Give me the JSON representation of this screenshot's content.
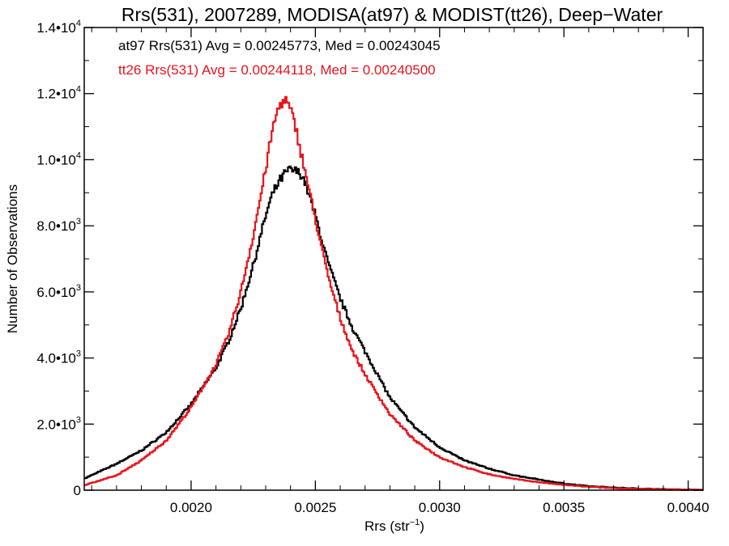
{
  "chart_data": {
    "type": "line",
    "title": "Rrs(531), 2007289, MODISA(at97) & MODIST(tt26), Deep−Water",
    "xlabel_main": "Rrs (str",
    "xlabel_sup": "−1",
    "xlabel_tail": ")",
    "ylabel": "Number of Observations",
    "xlim": [
      0.00157,
      0.00406
    ],
    "ylim": [
      0,
      14000
    ],
    "x_ticks": [
      {
        "value": 0.002,
        "label": "0.0020"
      },
      {
        "value": 0.0025,
        "label": "0.0025"
      },
      {
        "value": 0.003,
        "label": "0.0030"
      },
      {
        "value": 0.0035,
        "label": "0.0035"
      },
      {
        "value": 0.004,
        "label": "0.0040"
      }
    ],
    "y_ticks": [
      {
        "value": 0,
        "label": "0",
        "sup": ""
      },
      {
        "value": 2000,
        "label": "2.0•10",
        "sup": "3"
      },
      {
        "value": 4000,
        "label": "4.0•10",
        "sup": "3"
      },
      {
        "value": 6000,
        "label": "6.0•10",
        "sup": "3"
      },
      {
        "value": 8000,
        "label": "8.0•10",
        "sup": "3"
      },
      {
        "value": 10000,
        "label": "1.0•10",
        "sup": "4"
      },
      {
        "value": 12000,
        "label": "1.2•10",
        "sup": "4"
      },
      {
        "value": 14000,
        "label": "1.4•10",
        "sup": "4"
      }
    ],
    "annotations": [
      {
        "text": "at97 Rrs(531) Avg = 0.00245773, Med = 0.00243045",
        "color": "#000000"
      },
      {
        "text": "tt26 Rrs(531) Avg = 0.00244118, Med = 0.00240500",
        "color": "#e8141c"
      }
    ],
    "series": [
      {
        "color": "#000000",
        "x": [
          0.00157,
          0.0017,
          0.0018,
          0.0019,
          0.002,
          0.0021,
          0.00215,
          0.0022,
          0.00225,
          0.0023,
          0.00233,
          0.00236,
          0.00238,
          0.0024,
          0.00242,
          0.00244,
          0.00246,
          0.0025,
          0.00255,
          0.0026,
          0.00265,
          0.0027,
          0.00275,
          0.0028,
          0.0029,
          0.003,
          0.0031,
          0.0032,
          0.0033,
          0.0034,
          0.0035,
          0.0036,
          0.0037,
          0.0038,
          0.0039,
          0.00406
        ],
        "y": [
          350,
          800,
          1200,
          1750,
          2600,
          3700,
          4500,
          5500,
          6800,
          8300,
          9000,
          9400,
          9600,
          9700,
          9650,
          9600,
          9300,
          8300,
          6900,
          5800,
          4900,
          4200,
          3500,
          2800,
          1900,
          1300,
          900,
          650,
          450,
          320,
          200,
          120,
          80,
          50,
          30,
          10
        ]
      },
      {
        "color": "#e8141c",
        "x": [
          0.00157,
          0.0017,
          0.0018,
          0.0019,
          0.002,
          0.0021,
          0.00215,
          0.0022,
          0.00225,
          0.0023,
          0.00232,
          0.00234,
          0.00236,
          0.00238,
          0.0024,
          0.00242,
          0.00244,
          0.00246,
          0.0025,
          0.00255,
          0.0026,
          0.00265,
          0.0027,
          0.00275,
          0.0028,
          0.0029,
          0.003,
          0.0031,
          0.0032,
          0.0033,
          0.0034,
          0.0035,
          0.0036,
          0.0037,
          0.0038,
          0.0039,
          0.00406
        ],
        "y": [
          150,
          450,
          900,
          1500,
          2500,
          3800,
          4700,
          6000,
          7700,
          9700,
          10600,
          11300,
          11700,
          11800,
          11500,
          11000,
          10300,
          9600,
          8200,
          6500,
          5200,
          4200,
          3500,
          2900,
          2300,
          1500,
          1000,
          700,
          480,
          340,
          240,
          160,
          100,
          60,
          35,
          20,
          10
        ]
      }
    ]
  }
}
